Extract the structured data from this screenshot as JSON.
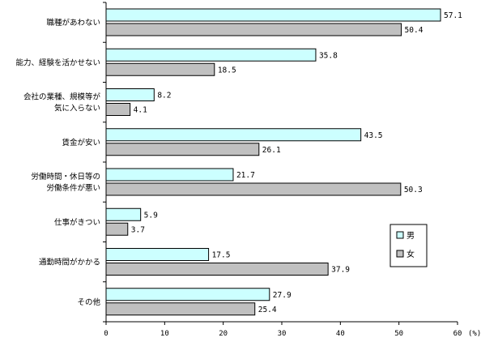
{
  "chart_data": {
    "type": "bar",
    "orientation": "horizontal",
    "categories": [
      [
        "職種があわない"
      ],
      [
        "能力、経験を活かせない"
      ],
      [
        "会社の業種、規模等が",
        "気に入らない"
      ],
      [
        "賃金が安い"
      ],
      [
        "労働時間・休日等の",
        "労働条件が悪い"
      ],
      [
        "仕事がきつい"
      ],
      [
        "通勤時間がかかる"
      ],
      [
        "その他"
      ]
    ],
    "series": [
      {
        "name": "男",
        "values": [
          57.1,
          35.8,
          8.2,
          43.5,
          21.7,
          5.9,
          17.5,
          27.9
        ],
        "color": "#ccffff"
      },
      {
        "name": "女",
        "values": [
          50.4,
          18.5,
          4.1,
          26.1,
          50.3,
          3.7,
          37.9,
          25.4
        ],
        "color": "#c0c0c0"
      }
    ],
    "xlim": [
      0,
      60
    ],
    "xticks": [
      0,
      10,
      20,
      30,
      40,
      50,
      60
    ],
    "x_unit": "(%)",
    "grid": false,
    "legend_position": "right"
  }
}
